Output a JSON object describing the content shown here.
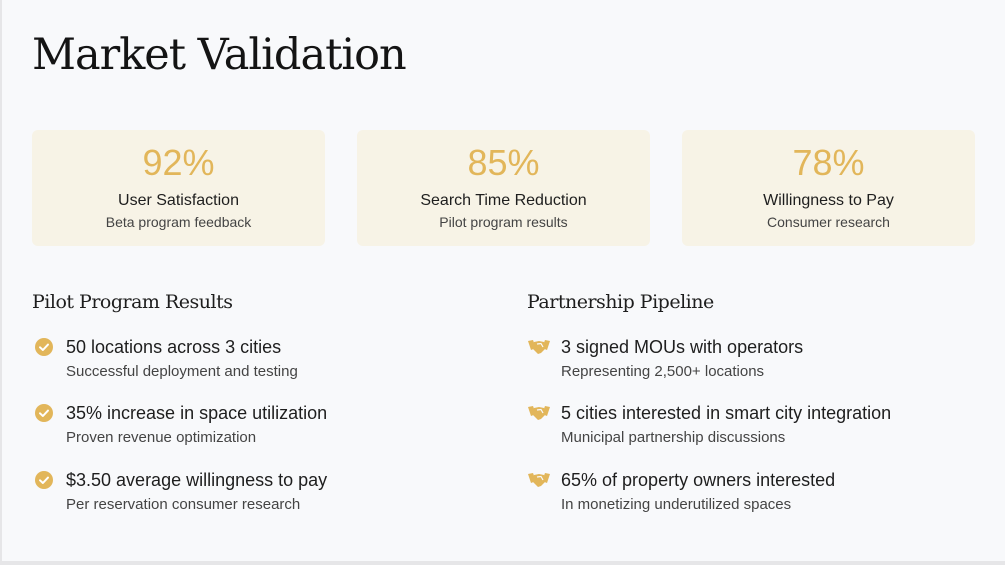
{
  "title": "Market Validation",
  "accent_color": "#e2b65a",
  "stats": [
    {
      "value": "92%",
      "label": "User Satisfaction",
      "sub": "Beta program feedback"
    },
    {
      "value": "85%",
      "label": "Search Time Reduction",
      "sub": "Pilot program results"
    },
    {
      "value": "78%",
      "label": "Willingness to Pay",
      "sub": "Consumer research"
    }
  ],
  "pilot": {
    "title": "Pilot Program Results",
    "icon": "check-circle-icon",
    "items": [
      {
        "head": "50 locations across 3 cities",
        "sub": "Successful deployment and testing"
      },
      {
        "head": "35% increase in space utilization",
        "sub": "Proven revenue optimization"
      },
      {
        "head": "$3.50 average willingness to pay",
        "sub": "Per reservation consumer research"
      }
    ]
  },
  "partnership": {
    "title": "Partnership Pipeline",
    "icon": "handshake-icon",
    "items": [
      {
        "head": "3 signed MOUs with operators",
        "sub": "Representing 2,500+ locations"
      },
      {
        "head": "5 cities interested in smart city integration",
        "sub": "Municipal partnership discussions"
      },
      {
        "head": "65% of property owners interested",
        "sub": "In monetizing underutilized spaces"
      }
    ]
  }
}
